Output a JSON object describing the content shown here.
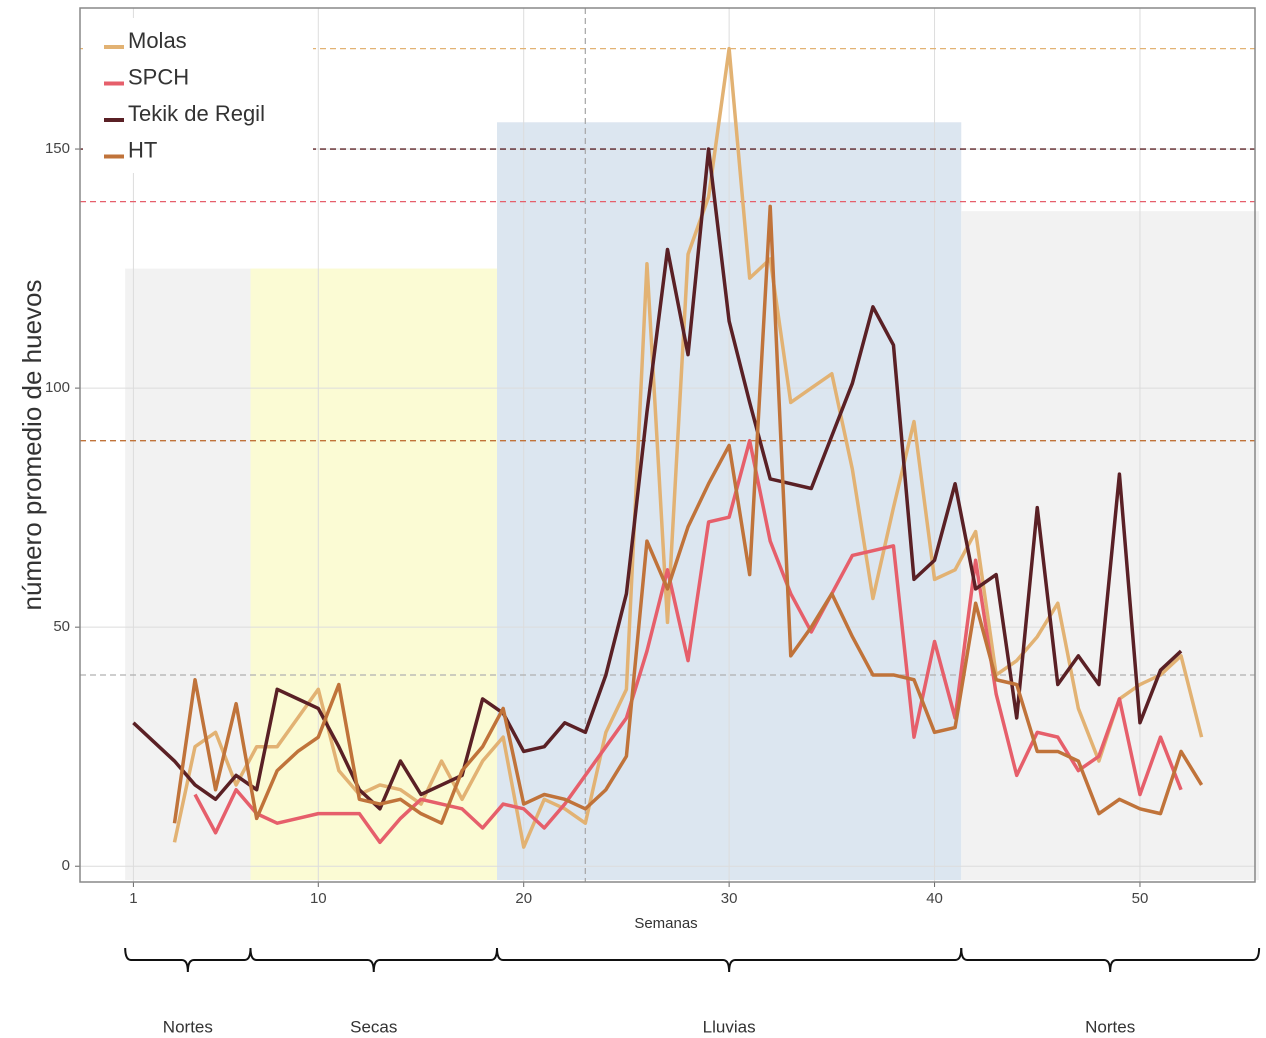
{
  "chart_data": {
    "type": "line",
    "x_label": "Semanas",
    "y_label": "número promedio de huevos",
    "x": [
      1,
      2,
      3,
      4,
      5,
      6,
      7,
      8,
      9,
      10,
      11,
      12,
      13,
      14,
      15,
      16,
      17,
      18,
      19,
      20,
      21,
      22,
      23,
      24,
      25,
      26,
      27,
      28,
      29,
      30,
      31,
      32,
      33,
      34,
      35,
      36,
      37,
      38,
      39,
      40,
      41,
      42,
      43,
      44,
      45,
      46,
      47,
      48,
      49,
      50,
      51,
      52,
      53
    ],
    "xlim": [
      -1.6,
      55.6
    ],
    "ylim": [
      -3.3,
      179.5
    ],
    "xticks": [
      1,
      10,
      20,
      30,
      40,
      50
    ],
    "yticks": [
      0,
      50,
      100,
      150
    ],
    "grid": true,
    "legend": "top-left",
    "series": [
      {
        "name": "Molas",
        "color": "#e2b273",
        "values": [
          null,
          null,
          5,
          25,
          28,
          17,
          25,
          25,
          31,
          37,
          20,
          15,
          17,
          16,
          13,
          22,
          14,
          22,
          27,
          4,
          14,
          12,
          9,
          28,
          37,
          126,
          51,
          128,
          140,
          171,
          123,
          127,
          97,
          100,
          103,
          83,
          56,
          75,
          93,
          60,
          62,
          70,
          40,
          43,
          48,
          55,
          33,
          22,
          35,
          38,
          40,
          44,
          27
        ]
      },
      {
        "name": "SPCH",
        "color": "#e65f6b",
        "values": [
          null,
          null,
          null,
          15,
          7,
          16,
          11,
          9,
          10,
          11,
          11,
          11,
          5,
          10,
          14,
          13,
          12,
          8,
          13,
          12,
          8,
          13,
          19,
          25,
          31,
          45,
          62,
          43,
          72,
          73,
          89,
          68,
          57,
          49,
          57,
          65,
          66,
          67,
          27,
          47,
          31,
          64,
          36,
          19,
          28,
          27,
          20,
          23,
          35,
          15,
          27,
          16,
          null
        ]
      },
      {
        "name": "Tekik de Regil",
        "color": "#5a2025",
        "values": [
          30,
          26,
          22,
          17,
          14,
          19,
          16,
          37,
          35,
          33,
          25,
          16,
          12,
          22,
          15,
          17,
          19,
          35,
          32,
          24,
          25,
          30,
          28,
          40,
          57,
          95,
          129,
          107,
          150,
          114,
          97,
          81,
          80,
          79,
          90,
          101,
          117,
          109,
          60,
          64,
          80,
          58,
          61,
          31,
          75,
          38,
          44,
          38,
          82,
          30,
          41,
          45,
          null
        ]
      },
      {
        "name": "HT",
        "color": "#c0733a",
        "values": [
          null,
          null,
          9,
          39,
          16,
          34,
          10,
          20,
          24,
          27,
          38,
          14,
          13,
          14,
          11,
          9,
          20,
          25,
          33,
          13,
          15,
          14,
          12,
          16,
          23,
          68,
          58,
          71,
          80,
          88,
          61,
          138,
          44,
          50,
          57,
          48,
          40,
          40,
          39,
          28,
          29,
          55,
          39,
          38,
          24,
          24,
          22,
          11,
          14,
          12,
          11,
          24,
          17
        ]
      }
    ],
    "reference_lines": [
      {
        "value": 171,
        "color": "#e2b273"
      },
      {
        "value": 150,
        "color": "#5a2025"
      },
      {
        "value": 139,
        "color": "#e65f6b"
      },
      {
        "value": 89,
        "color": "#c0733a"
      },
      {
        "value": 40,
        "color": "#b0b0b0"
      }
    ],
    "x_reference_lines": [
      {
        "value": 23,
        "color": "#aaaaaa"
      }
    ],
    "spans": [
      {
        "label": "Nortes",
        "x0": 0.6,
        "x1": 6.7,
        "top": 125,
        "color": "#f2f2f2"
      },
      {
        "label": "Secas",
        "x0": 6.7,
        "x1": 18.7,
        "top": 125,
        "color": "#fbfbd4"
      },
      {
        "label": "Lluvias",
        "x0": 18.7,
        "x1": 41.3,
        "top": 155.6,
        "color": "#dce6f0"
      },
      {
        "label": "Nortes",
        "x0": 41.3,
        "x1": 55.8,
        "top": 137,
        "color": "#f2f2f2"
      }
    ]
  }
}
